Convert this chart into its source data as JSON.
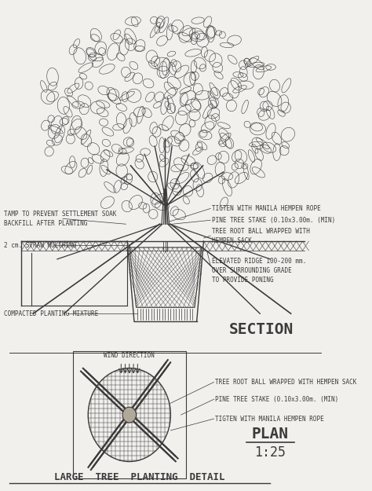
{
  "bg_color": "#f2f0ed",
  "line_color": "#3a3a3a",
  "title": "LARGE  TREE  PLANTING  DETAIL",
  "plan_label": "PLAN",
  "plan_scale": "1:25",
  "section_label": "SECTION",
  "wind_direction_label": "WIND DIRECTION"
}
